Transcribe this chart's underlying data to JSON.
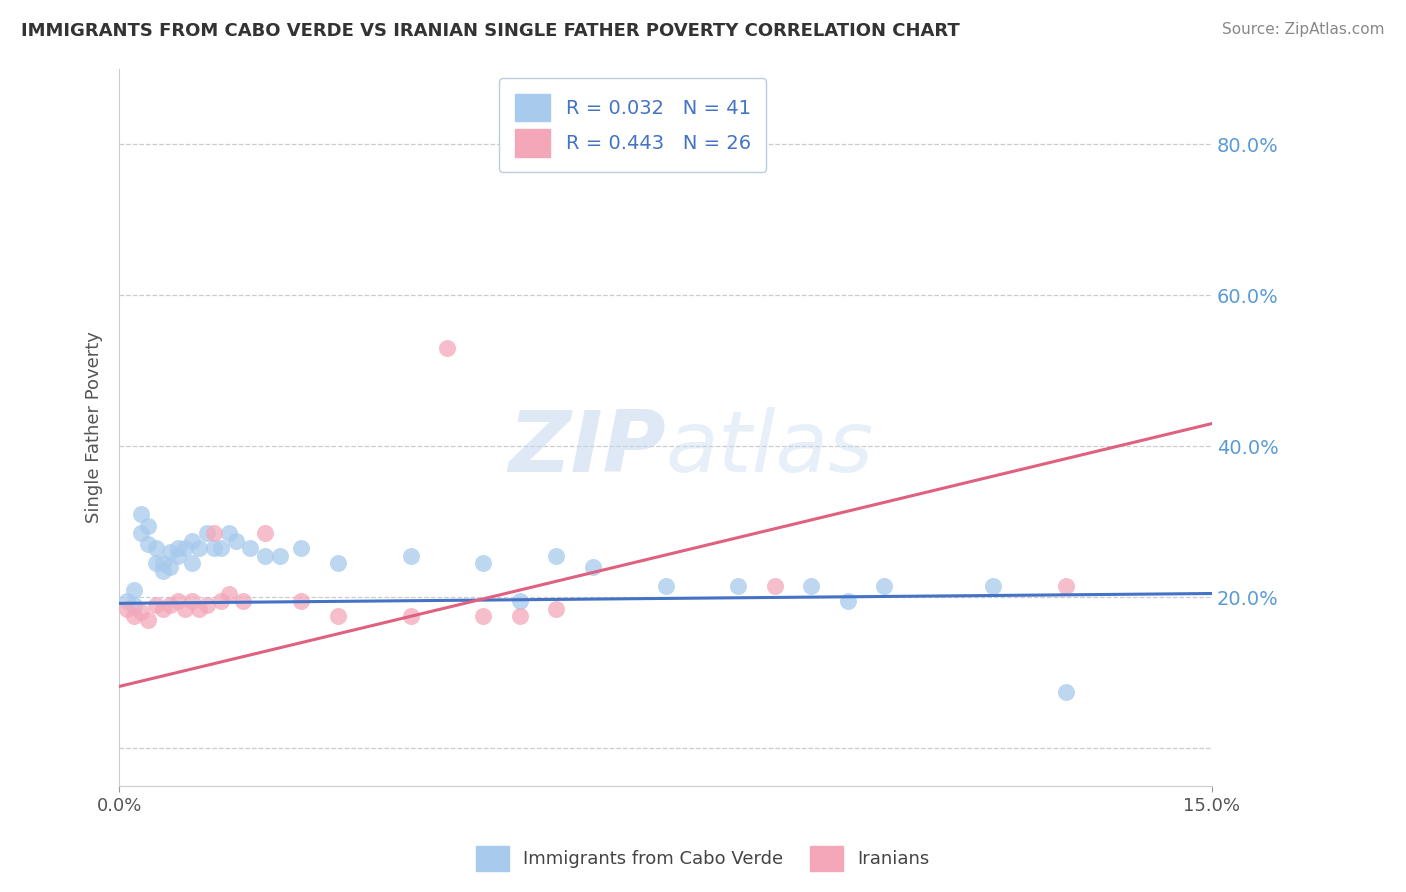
{
  "title": "IMMIGRANTS FROM CABO VERDE VS IRANIAN SINGLE FATHER POVERTY CORRELATION CHART",
  "source": "Source: ZipAtlas.com",
  "ylabel": "Single Father Poverty",
  "xlim": [
    0.0,
    0.15
  ],
  "ylim": [
    -0.05,
    0.9
  ],
  "yticks": [
    0.0,
    0.2,
    0.4,
    0.6,
    0.8
  ],
  "ytick_labels": [
    "",
    "20.0%",
    "40.0%",
    "60.0%",
    "80.0%"
  ],
  "xtick_labels": [
    "0.0%",
    "15.0%"
  ],
  "blue_R": 0.032,
  "blue_N": 41,
  "pink_R": 0.443,
  "pink_N": 26,
  "blue_color": "#A8CAED",
  "pink_color": "#F4A7B9",
  "blue_line_color": "#4472C4",
  "pink_line_color": "#E06080",
  "right_label_color": "#5B9BD5",
  "watermark_color": "#D8E8F5",
  "watermark": "ZIPatlas",
  "legend_label_blue": "Immigrants from Cabo Verde",
  "legend_label_pink": "Iranians",
  "blue_scatter_x": [
    0.001,
    0.002,
    0.002,
    0.003,
    0.003,
    0.004,
    0.004,
    0.005,
    0.005,
    0.006,
    0.006,
    0.007,
    0.007,
    0.008,
    0.008,
    0.009,
    0.01,
    0.01,
    0.011,
    0.012,
    0.013,
    0.014,
    0.015,
    0.016,
    0.018,
    0.02,
    0.022,
    0.025,
    0.03,
    0.04,
    0.05,
    0.055,
    0.06,
    0.065,
    0.075,
    0.085,
    0.095,
    0.1,
    0.105,
    0.12,
    0.13
  ],
  "blue_scatter_y": [
    0.195,
    0.21,
    0.19,
    0.285,
    0.31,
    0.295,
    0.27,
    0.265,
    0.245,
    0.245,
    0.235,
    0.26,
    0.24,
    0.265,
    0.255,
    0.265,
    0.275,
    0.245,
    0.265,
    0.285,
    0.265,
    0.265,
    0.285,
    0.275,
    0.265,
    0.255,
    0.255,
    0.265,
    0.245,
    0.255,
    0.245,
    0.195,
    0.255,
    0.24,
    0.215,
    0.215,
    0.215,
    0.195,
    0.215,
    0.215,
    0.075
  ],
  "pink_scatter_x": [
    0.001,
    0.002,
    0.003,
    0.004,
    0.005,
    0.006,
    0.007,
    0.008,
    0.009,
    0.01,
    0.011,
    0.012,
    0.013,
    0.014,
    0.015,
    0.017,
    0.02,
    0.025,
    0.03,
    0.04,
    0.045,
    0.05,
    0.055,
    0.06,
    0.09,
    0.13
  ],
  "pink_scatter_y": [
    0.185,
    0.175,
    0.18,
    0.17,
    0.19,
    0.185,
    0.19,
    0.195,
    0.185,
    0.195,
    0.185,
    0.19,
    0.285,
    0.195,
    0.205,
    0.195,
    0.285,
    0.195,
    0.175,
    0.175,
    0.53,
    0.175,
    0.175,
    0.185,
    0.215,
    0.215
  ],
  "blue_trend_x": [
    0.0,
    0.15
  ],
  "blue_trend_y": [
    0.192,
    0.205
  ],
  "pink_trend_x": [
    0.0,
    0.15
  ],
  "pink_trend_y": [
    0.082,
    0.43
  ]
}
